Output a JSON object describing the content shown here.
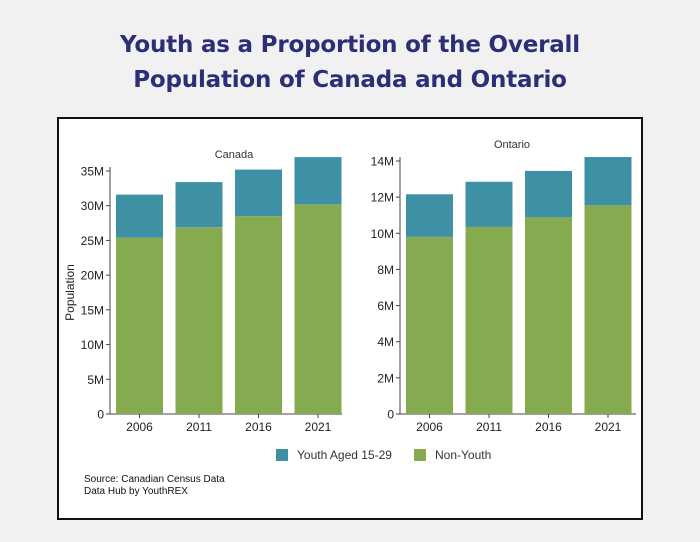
{
  "title_lines": [
    "Youth as a Proportion of the Overall",
    "Population of Canada and Ontario"
  ],
  "legend": [
    {
      "label": "Youth Aged 15-29",
      "color": "#3e90a5"
    },
    {
      "label": "Non-Youth",
      "color": "#86aa50"
    }
  ],
  "source_lines": [
    "Source: Canadian Census Data",
    "Data Hub by YouthREX"
  ],
  "chart_data": [
    {
      "type": "bar",
      "stacked": true,
      "title": "Canada",
      "xlabel": "",
      "ylabel": "Population",
      "categories": [
        "2006",
        "2011",
        "2016",
        "2021"
      ],
      "series": [
        {
          "name": "Non-Youth",
          "values": [
            25400000,
            26900000,
            28500000,
            30200000
          ],
          "color": "#86aa50"
        },
        {
          "name": "Youth Aged 15-29",
          "values": [
            6200000,
            6500000,
            6700000,
            6800000
          ],
          "color": "#3e90a5"
        }
      ],
      "ylim": [
        0,
        35000000
      ],
      "yticks": [
        0,
        5000000,
        10000000,
        15000000,
        20000000,
        25000000,
        30000000,
        35000000
      ],
      "ytick_labels": [
        "0",
        "5M",
        "10M",
        "15M",
        "20M",
        "25M",
        "30M",
        "35M"
      ]
    },
    {
      "type": "bar",
      "stacked": true,
      "title": "Ontario",
      "xlabel": "",
      "ylabel": "",
      "categories": [
        "2006",
        "2011",
        "2016",
        "2021"
      ],
      "series": [
        {
          "name": "Non-Youth",
          "values": [
            9800000,
            10350000,
            10880000,
            11550000
          ],
          "color": "#86aa50"
        },
        {
          "name": "Youth Aged 15-29",
          "values": [
            2360000,
            2500000,
            2570000,
            2670000
          ],
          "color": "#3e90a5"
        }
      ],
      "ylim": [
        0,
        14000000
      ],
      "yticks": [
        0,
        2000000,
        4000000,
        6000000,
        8000000,
        10000000,
        12000000,
        14000000
      ],
      "ytick_labels": [
        "0",
        "2M",
        "4M",
        "6M",
        "8M",
        "10M",
        "12M",
        "14M"
      ]
    }
  ]
}
